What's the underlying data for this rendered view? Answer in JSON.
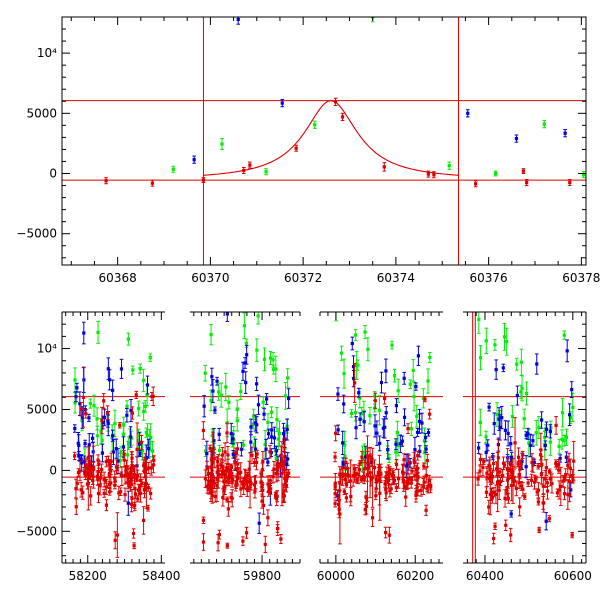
{
  "chart_data": [
    {
      "type": "scatter",
      "panel": "top",
      "xlim": [
        60366.8,
        60378.1
      ],
      "ylim": [
        -7600,
        13000
      ],
      "x_ticks": [
        60368,
        60370,
        60372,
        60374,
        60376,
        60378
      ],
      "x_tick_labels": [
        "60368",
        "60370",
        "60372",
        "60374",
        "60376",
        "60378"
      ],
      "y_ticks": [
        -5000,
        0,
        5000,
        10000
      ],
      "y_tick_labels": [
        "−5000",
        "0",
        "5000",
        "10⁴"
      ],
      "vlines": [
        60369.85,
        60375.35
      ],
      "hlines": [
        6050,
        -550
      ],
      "model_curve": {
        "color": "#dd0000",
        "x_range": [
          60369.85,
          60375.35
        ],
        "peak_x": 60372.6,
        "peak_y": 6050,
        "baseline_y": -550,
        "width": 0.7
      },
      "series": [
        {
          "color": "#dd0000",
          "points": [
            {
              "x": 60367.75,
              "y": -600,
              "err": 250
            },
            {
              "x": 60368.75,
              "y": -800,
              "err": 250
            },
            {
              "x": 60369.85,
              "y": -550,
              "err": 200
            },
            {
              "x": 60370.72,
              "y": 250,
              "err": 250
            },
            {
              "x": 60370.85,
              "y": 700,
              "err": 250
            },
            {
              "x": 60371.85,
              "y": 2100,
              "err": 250
            },
            {
              "x": 60372.7,
              "y": 5950,
              "err": 300
            },
            {
              "x": 60372.85,
              "y": 4700,
              "err": 300
            },
            {
              "x": 60373.75,
              "y": 550,
              "err": 350
            },
            {
              "x": 60374.7,
              "y": -50,
              "err": 250
            },
            {
              "x": 60374.82,
              "y": -100,
              "err": 250
            },
            {
              "x": 60375.72,
              "y": -850,
              "err": 250
            },
            {
              "x": 60376.75,
              "y": 200,
              "err": 200
            },
            {
              "x": 60376.82,
              "y": -750,
              "err": 250
            },
            {
              "x": 60377.75,
              "y": -750,
              "err": 250
            }
          ]
        },
        {
          "color": "#0000dd",
          "points": [
            {
              "x": 60369.65,
              "y": 1150,
              "err": 300
            },
            {
              "x": 60370.6,
              "y": 12800,
              "err": 400
            },
            {
              "x": 60371.55,
              "y": 5850,
              "err": 300
            },
            {
              "x": 60375.55,
              "y": 5000,
              "err": 300
            },
            {
              "x": 60376.6,
              "y": 2900,
              "err": 300
            },
            {
              "x": 60377.65,
              "y": 3350,
              "err": 300
            }
          ]
        },
        {
          "color": "#00ee00",
          "points": [
            {
              "x": 60369.2,
              "y": 350,
              "err": 250
            },
            {
              "x": 60370.25,
              "y": 2450,
              "err": 450
            },
            {
              "x": 60371.2,
              "y": 150,
              "err": 250
            },
            {
              "x": 60372.25,
              "y": 4050,
              "err": 300
            },
            {
              "x": 60373.5,
              "y": 13000,
              "err": 400
            },
            {
              "x": 60375.15,
              "y": 650,
              "err": 300
            },
            {
              "x": 60376.15,
              "y": 0,
              "err": 200
            },
            {
              "x": 60377.2,
              "y": 4100,
              "err": 300
            },
            {
              "x": 60378.05,
              "y": -100,
              "err": 250
            }
          ]
        }
      ]
    },
    {
      "type": "scatter",
      "panel": "bottom",
      "xlim": [
        58130,
        60630
      ],
      "ylim": [
        -7600,
        13000
      ],
      "segments": [
        {
          "name": "seg-a",
          "data_range": [
            58130,
            58410
          ],
          "px_range": [
            62,
            165
          ]
        },
        {
          "name": "seg-b",
          "data_range": [
            59610,
            59900
          ],
          "px_range": [
            190,
            300
          ]
        },
        {
          "name": "seg-c",
          "data_range": [
            59960,
            60270
          ],
          "px_range": [
            320,
            443
          ]
        },
        {
          "name": "seg-d",
          "data_range": [
            60350,
            60630
          ],
          "px_range": [
            463,
            586
          ]
        }
      ],
      "x_ticks": [
        58200,
        58400,
        59800,
        60000,
        60200,
        60400,
        60600
      ],
      "x_tick_labels": [
        "58200",
        "58400",
        "59800",
        "60000",
        "60200",
        "60400",
        "60600"
      ],
      "y_ticks": [
        -5000,
        0,
        5000,
        10000
      ],
      "y_tick_labels": [
        "−5000",
        "0",
        "5000",
        "10⁴"
      ],
      "hlines": [
        6050,
        -550
      ],
      "vlines": [
        60372,
        60378
      ],
      "series_colors": [
        "#dd0000",
        "#0000dd",
        "#00ee00"
      ],
      "density_note_counts": {
        "red": 520,
        "blue": 180,
        "green": 160
      }
    }
  ]
}
